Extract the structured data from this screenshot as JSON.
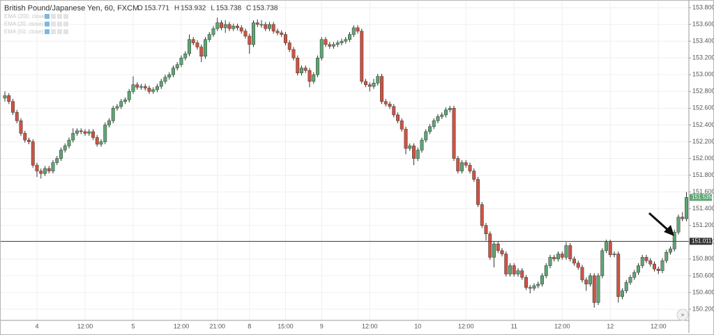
{
  "chart_data": {
    "type": "candlestick",
    "title": "British Pound/Japanese Yen, 60, FXCM",
    "header_ohlc": [
      {
        "label": "O",
        "value": 153.771
      },
      {
        "label": "H",
        "value": 153.932
      },
      {
        "label": "L",
        "value": 153.738
      },
      {
        "label": "C",
        "value": 153.738
      }
    ],
    "indicators": [
      "EMA (200, close)",
      "EMA (20, close)",
      "EMA (50, close)"
    ],
    "up_color": "#5ea574",
    "down_color": "#cd5442",
    "grid": true,
    "ylim": [
      150.067,
      153.875
    ],
    "yticks": [
      {
        "value": 150.2,
        "label": "150.200"
      },
      {
        "value": 150.4,
        "label": "150.400"
      },
      {
        "value": 150.6,
        "label": "150.600"
      },
      {
        "value": 150.8,
        "label": "150.800"
      },
      {
        "value": 151.0,
        "label": "151.000"
      },
      {
        "value": 151.2,
        "label": "151.200"
      },
      {
        "value": 151.4,
        "label": "151.400"
      },
      {
        "value": 151.6,
        "label": "151.600"
      },
      {
        "value": 151.8,
        "label": "151.800"
      },
      {
        "value": 152.0,
        "label": "152.000"
      },
      {
        "value": 152.2,
        "label": "152.200"
      },
      {
        "value": 152.4,
        "label": "152.400"
      },
      {
        "value": 152.6,
        "label": "152.600"
      },
      {
        "value": 152.8,
        "label": "152.800"
      },
      {
        "value": 153.0,
        "label": "153.000"
      },
      {
        "value": 153.2,
        "label": "153.200"
      },
      {
        "value": 153.4,
        "label": "153.400"
      },
      {
        "value": 153.6,
        "label": "153.600"
      },
      {
        "value": 153.8,
        "label": "153.800"
      }
    ],
    "price_line": 151.011,
    "categories": [
      null,
      null,
      null,
      null,
      null,
      null,
      null,
      null,
      "4",
      null,
      null,
      null,
      null,
      null,
      null,
      null,
      null,
      null,
      null,
      null,
      "12:00",
      null,
      null,
      null,
      null,
      null,
      null,
      null,
      null,
      null,
      null,
      null,
      "5",
      null,
      null,
      null,
      null,
      null,
      null,
      null,
      null,
      null,
      null,
      null,
      "12:00",
      null,
      null,
      null,
      null,
      null,
      null,
      null,
      null,
      "21:00",
      null,
      null,
      null,
      null,
      null,
      null,
      null,
      "8",
      null,
      null,
      null,
      null,
      null,
      null,
      null,
      null,
      "15:00",
      null,
      null,
      null,
      null,
      null,
      null,
      null,
      null,
      "9",
      null,
      null,
      null,
      null,
      null,
      null,
      null,
      null,
      null,
      null,
      null,
      "12:00",
      null,
      null,
      null,
      null,
      null,
      null,
      null,
      null,
      null,
      null,
      null,
      "10",
      null,
      null,
      null,
      null,
      null,
      null,
      null,
      null,
      null,
      null,
      null,
      "12:00",
      null,
      null,
      null,
      null,
      null,
      null,
      null,
      null,
      null,
      null,
      null,
      "11",
      null,
      null,
      null,
      null,
      null,
      null,
      null,
      null,
      null,
      null,
      null,
      "12:00",
      null,
      null,
      null,
      null,
      null,
      null,
      null,
      null,
      null,
      null,
      null,
      "12",
      null,
      null,
      null,
      null,
      null,
      null,
      null,
      null,
      null,
      null,
      null,
      "12:00",
      null,
      null,
      null,
      null,
      null,
      null,
      null
    ],
    "open": [
      152.72,
      152.75,
      152.68,
      152.55,
      152.45,
      152.3,
      152.22,
      152.2,
      151.92,
      151.85,
      151.82,
      151.88,
      151.85,
      151.95,
      152.0,
      152.1,
      152.15,
      152.22,
      152.3,
      152.33,
      152.32,
      152.3,
      152.32,
      152.25,
      152.17,
      152.2,
      152.4,
      152.45,
      152.6,
      152.62,
      152.68,
      152.7,
      152.8,
      152.88,
      152.85,
      152.86,
      152.84,
      152.8,
      152.82,
      152.86,
      152.92,
      152.97,
      153.0,
      153.08,
      153.12,
      153.2,
      153.25,
      153.42,
      153.38,
      153.33,
      153.22,
      153.42,
      153.48,
      153.55,
      153.62,
      153.56,
      153.6,
      153.55,
      153.58,
      153.56,
      153.52,
      153.46,
      153.36,
      153.62,
      153.6,
      153.6,
      153.55,
      153.6,
      153.52,
      153.5,
      153.48,
      153.38,
      153.3,
      153.2,
      153.02,
      153.08,
      153.05,
      152.92,
      153.0,
      153.2,
      153.42,
      153.36,
      153.34,
      153.36,
      153.38,
      153.4,
      153.42,
      153.48,
      153.56,
      153.52,
      152.92,
      152.88,
      152.86,
      152.9,
      152.98,
      152.68,
      152.65,
      152.62,
      152.52,
      152.45,
      152.35,
      152.12,
      152.15,
      152.0,
      152.1,
      152.22,
      152.32,
      152.38,
      152.45,
      152.5,
      152.52,
      152.58,
      152.6,
      152.0,
      151.85,
      151.95,
      151.92,
      151.85,
      151.75,
      151.45,
      151.2,
      151.1,
      150.82,
      150.98,
      150.9,
      150.86,
      150.62,
      150.72,
      150.62,
      150.66,
      150.58,
      150.46,
      150.45,
      150.48,
      150.5,
      150.6,
      150.72,
      150.82,
      150.8,
      150.86,
      150.82,
      150.96,
      150.8,
      150.75,
      150.7,
      150.55,
      150.5,
      150.6,
      150.28,
      150.6,
      150.9,
      151.0,
      150.85,
      150.86,
      150.35,
      150.42,
      150.52,
      150.58,
      150.64,
      150.72,
      150.82,
      150.78,
      150.74,
      150.68,
      150.66,
      150.78,
      150.88,
      150.92,
      151.12,
      151.3,
      151.28
    ],
    "high": [
      152.8,
      152.78,
      152.71,
      152.58,
      152.48,
      152.33,
      152.25,
      152.23,
      151.95,
      151.88,
      151.91,
      151.91,
      151.98,
      152.03,
      152.13,
      152.18,
      152.25,
      152.36,
      152.36,
      152.36,
      152.35,
      152.35,
      152.35,
      152.28,
      152.23,
      152.43,
      152.48,
      152.63,
      152.65,
      152.71,
      152.73,
      152.83,
      152.98,
      152.91,
      152.89,
      152.89,
      152.87,
      152.85,
      152.89,
      152.95,
      153.0,
      153.03,
      153.11,
      153.15,
      153.23,
      153.28,
      153.48,
      153.45,
      153.41,
      153.36,
      153.45,
      153.51,
      153.58,
      153.68,
      153.65,
      153.65,
      153.63,
      153.61,
      153.61,
      153.59,
      153.55,
      153.49,
      153.65,
      153.66,
      153.65,
      153.63,
      153.63,
      153.63,
      153.55,
      153.53,
      153.51,
      153.41,
      153.33,
      153.23,
      153.11,
      153.11,
      153.08,
      153.03,
      153.23,
      153.45,
      153.45,
      153.39,
      153.39,
      153.41,
      153.43,
      153.45,
      153.51,
      153.59,
      153.59,
      153.55,
      152.95,
      152.91,
      152.95,
      153.01,
      153.01,
      152.71,
      152.68,
      152.65,
      152.55,
      152.48,
      152.38,
      152.18,
      152.18,
      152.13,
      152.25,
      152.35,
      152.41,
      152.48,
      152.53,
      152.55,
      152.61,
      152.63,
      152.63,
      152.03,
      151.98,
      151.98,
      151.95,
      151.88,
      151.78,
      151.48,
      151.23,
      151.13,
      151.01,
      151.01,
      150.93,
      150.89,
      150.75,
      150.75,
      150.69,
      150.69,
      150.61,
      150.49,
      150.51,
      150.53,
      150.63,
      150.75,
      150.85,
      150.85,
      150.89,
      150.89,
      151.0,
      150.99,
      150.83,
      150.78,
      150.73,
      150.58,
      150.63,
      150.63,
      150.63,
      150.93,
      151.03,
      151.03,
      150.89,
      150.89,
      150.45,
      150.55,
      150.61,
      150.67,
      150.75,
      150.85,
      150.85,
      150.81,
      150.77,
      150.71,
      150.81,
      150.91,
      150.95,
      151.15,
      151.33,
      151.36,
      151.6
    ],
    "low": [
      152.68,
      152.65,
      152.52,
      152.42,
      152.27,
      152.19,
      152.17,
      151.89,
      151.78,
      151.76,
      151.79,
      151.82,
      151.82,
      151.92,
      151.97,
      152.07,
      152.12,
      152.19,
      152.27,
      152.29,
      152.27,
      152.27,
      152.22,
      152.14,
      152.14,
      152.17,
      152.37,
      152.42,
      152.57,
      152.59,
      152.65,
      152.67,
      152.77,
      152.82,
      152.82,
      152.81,
      152.77,
      152.77,
      152.79,
      152.83,
      152.89,
      152.94,
      152.97,
      153.05,
      153.09,
      153.17,
      153.22,
      153.35,
      153.3,
      153.15,
      153.19,
      153.39,
      153.45,
      153.52,
      153.53,
      153.5,
      153.52,
      153.52,
      153.53,
      153.49,
      153.43,
      153.25,
      153.33,
      153.57,
      153.56,
      153.52,
      153.52,
      153.49,
      153.47,
      153.45,
      153.35,
      153.27,
      153.17,
      152.99,
      152.99,
      153.02,
      152.85,
      152.89,
      152.97,
      153.17,
      153.33,
      153.31,
      153.31,
      153.33,
      153.35,
      153.37,
      153.39,
      153.45,
      153.49,
      152.89,
      152.85,
      152.8,
      152.83,
      152.87,
      152.65,
      152.62,
      152.59,
      152.49,
      152.42,
      152.32,
      152.05,
      152.09,
      151.92,
      151.97,
      152.07,
      152.19,
      152.29,
      152.35,
      152.42,
      152.47,
      152.49,
      152.55,
      151.97,
      151.82,
      151.82,
      151.89,
      151.82,
      151.72,
      151.42,
      151.17,
      151.02,
      150.79,
      150.7,
      150.87,
      150.83,
      150.59,
      150.59,
      150.59,
      150.59,
      150.55,
      150.43,
      150.39,
      150.42,
      150.45,
      150.47,
      150.57,
      150.69,
      150.77,
      150.77,
      150.79,
      150.79,
      150.77,
      150.72,
      150.67,
      150.52,
      150.42,
      150.47,
      150.22,
      150.25,
      150.57,
      150.87,
      150.82,
      150.82,
      150.28,
      150.32,
      150.39,
      150.49,
      150.55,
      150.61,
      150.69,
      150.75,
      150.71,
      150.65,
      150.62,
      150.63,
      150.75,
      150.85,
      150.89,
      151.09,
      151.25,
      151.25
    ],
    "close": [
      152.75,
      152.68,
      152.55,
      152.45,
      152.3,
      152.22,
      152.2,
      151.92,
      151.85,
      151.82,
      151.88,
      151.85,
      151.95,
      152.0,
      152.1,
      152.15,
      152.22,
      152.3,
      152.33,
      152.32,
      152.3,
      152.32,
      152.25,
      152.17,
      152.2,
      152.4,
      152.45,
      152.6,
      152.62,
      152.68,
      152.7,
      152.8,
      152.88,
      152.85,
      152.86,
      152.84,
      152.8,
      152.82,
      152.86,
      152.92,
      152.97,
      153.0,
      153.08,
      153.12,
      153.2,
      153.25,
      153.42,
      153.38,
      153.33,
      153.22,
      153.42,
      153.48,
      153.55,
      153.62,
      153.56,
      153.6,
      153.55,
      153.58,
      153.56,
      153.52,
      153.46,
      153.36,
      153.62,
      153.6,
      153.6,
      153.55,
      153.6,
      153.52,
      153.5,
      153.48,
      153.38,
      153.3,
      153.2,
      153.02,
      153.08,
      153.05,
      152.92,
      153.0,
      153.2,
      153.42,
      153.36,
      153.34,
      153.36,
      153.38,
      153.4,
      153.42,
      153.48,
      153.56,
      153.52,
      152.92,
      152.88,
      152.86,
      152.9,
      152.98,
      152.68,
      152.65,
      152.62,
      152.52,
      152.45,
      152.35,
      152.12,
      152.15,
      152.0,
      152.1,
      152.22,
      152.32,
      152.38,
      152.45,
      152.5,
      152.52,
      152.58,
      152.6,
      152.0,
      151.85,
      151.95,
      151.92,
      151.85,
      151.75,
      151.45,
      151.2,
      151.1,
      150.82,
      150.98,
      150.9,
      150.86,
      150.62,
      150.72,
      150.62,
      150.66,
      150.58,
      150.46,
      150.45,
      150.48,
      150.5,
      150.6,
      150.72,
      150.82,
      150.8,
      150.86,
      150.82,
      150.96,
      150.8,
      150.75,
      150.7,
      150.55,
      150.5,
      150.6,
      150.28,
      150.6,
      150.9,
      151.0,
      150.85,
      150.86,
      150.35,
      150.42,
      150.52,
      150.58,
      150.64,
      150.72,
      150.82,
      150.78,
      150.74,
      150.68,
      150.66,
      150.78,
      150.88,
      150.92,
      151.12,
      151.3,
      151.28,
      151.535
    ]
  }
}
